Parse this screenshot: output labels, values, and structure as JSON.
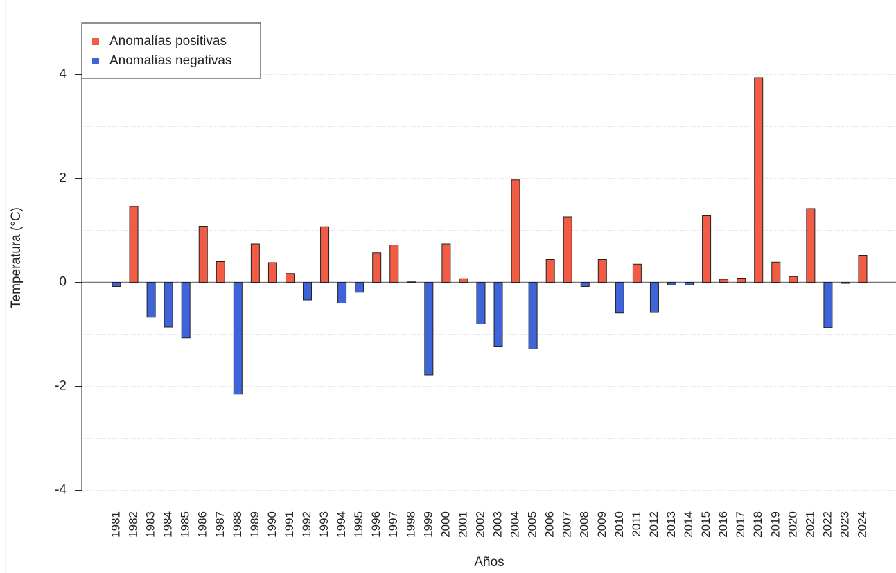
{
  "chart_data": {
    "type": "bar",
    "x_label": "Años",
    "y_label": "Temperatura (°C)",
    "categories": [
      "1981",
      "1982",
      "1983",
      "1984",
      "1985",
      "1986",
      "1987",
      "1988",
      "1989",
      "1990",
      "1991",
      "1992",
      "1993",
      "1994",
      "1995",
      "1996",
      "1997",
      "1998",
      "1999",
      "2000",
      "2001",
      "2002",
      "2003",
      "2004",
      "2005",
      "2006",
      "2007",
      "2008",
      "2009",
      "2010",
      "2011",
      "2012",
      "2013",
      "2014",
      "2015",
      "2016",
      "2017",
      "2018",
      "2019",
      "2020",
      "2021",
      "2022",
      "2023",
      "2024"
    ],
    "values": [
      -0.08,
      1.46,
      -0.67,
      -0.86,
      -1.07,
      1.08,
      0.4,
      -2.15,
      0.74,
      0.38,
      0.17,
      -0.34,
      1.07,
      -0.4,
      -0.19,
      0.57,
      0.72,
      0.01,
      -1.78,
      0.74,
      0.07,
      -0.8,
      -1.24,
      1.97,
      -1.28,
      0.44,
      1.26,
      -0.08,
      0.44,
      -0.59,
      0.35,
      -0.58,
      -0.05,
      -0.05,
      1.28,
      0.06,
      0.08,
      3.94,
      0.39,
      0.11,
      1.42,
      -0.87,
      -0.02,
      0.52
    ],
    "legend": [
      {
        "name": "Anomalías positivas",
        "color": "#f25b44"
      },
      {
        "name": "Anomalías negativas",
        "color": "#3f63d8"
      }
    ],
    "legend_position": "top-left",
    "ylim": [
      -4.3,
      4.9
    ],
    "yticks": [
      -4,
      -2,
      0,
      2,
      4
    ],
    "minor_gridlines": [
      -3,
      -1,
      1,
      3
    ],
    "grid": true
  }
}
